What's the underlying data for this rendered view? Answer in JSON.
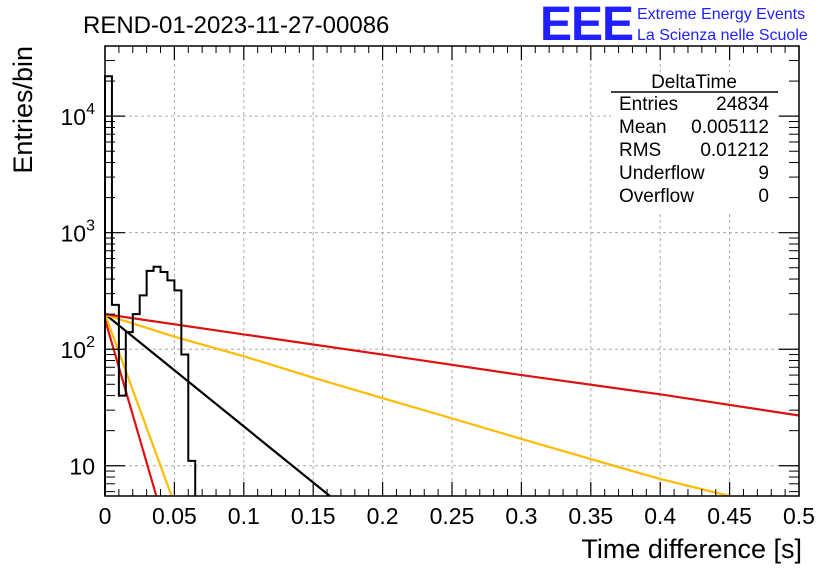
{
  "header": {
    "run_title": "REND-01-2023-11-27-00086",
    "logo_mark": "EEE",
    "logo_line1": "Extreme Energy Events",
    "logo_line2": "La Scienza nelle Scuole"
  },
  "stats_box": {
    "name": "DeltaTime",
    "rows": [
      {
        "label": "Entries",
        "value": "24834"
      },
      {
        "label": "Mean",
        "value": "0.005112"
      },
      {
        "label": "RMS",
        "value": "0.01212"
      },
      {
        "label": "Underflow",
        "value": "9"
      },
      {
        "label": "Overflow",
        "value": "0"
      }
    ]
  },
  "chart_data": {
    "type": "histogram",
    "xlabel": "Time difference [s]",
    "ylabel": "Entries/bin",
    "xlim": [
      0,
      0.5
    ],
    "ylim": [
      5.5,
      40000
    ],
    "yscale": "log",
    "grid": true,
    "x_ticks": [
      "0",
      "0.05",
      "0.1",
      "0.15",
      "0.2",
      "0.25",
      "0.3",
      "0.35",
      "0.4",
      "0.45",
      "0.5"
    ],
    "y_ticks": [
      {
        "value": 10,
        "base": "10",
        "exp": ""
      },
      {
        "value": 100,
        "base": "10",
        "exp": "2"
      },
      {
        "value": 1000,
        "base": "10",
        "exp": "3"
      },
      {
        "value": 10000,
        "base": "10",
        "exp": "4"
      }
    ],
    "histogram": {
      "bin_edges": [
        0,
        0.005,
        0.01,
        0.015,
        0.02,
        0.025,
        0.03,
        0.035,
        0.04,
        0.045,
        0.05,
        0.055,
        0.06,
        0.065
      ],
      "counts": [
        22000,
        240,
        40,
        140,
        200,
        290,
        470,
        510,
        460,
        390,
        320,
        90,
        11
      ],
      "color": "#000000"
    },
    "fit_lines": [
      {
        "color": "#000000",
        "x": [
          0,
          0.162
        ],
        "y": [
          200,
          5.5
        ]
      },
      {
        "color": "#ffbb00",
        "x": [
          0,
          0.05,
          0.1,
          0.15,
          0.2,
          0.25,
          0.3,
          0.35,
          0.4,
          0.45
        ],
        "y": [
          198,
          128,
          87,
          57,
          38,
          25.5,
          17,
          11.4,
          7.7,
          5.5
        ]
      },
      {
        "color": "#ffbb00",
        "x": [
          0,
          0.048
        ],
        "y": [
          200,
          5.5
        ]
      },
      {
        "color": "#dd1111",
        "x": [
          0,
          0.1,
          0.2,
          0.3,
          0.4,
          0.5
        ],
        "y": [
          200,
          134,
          90,
          60,
          41,
          27
        ]
      },
      {
        "color": "#dd1111",
        "x": [
          0,
          0.037
        ],
        "y": [
          180,
          5.5
        ]
      }
    ]
  }
}
